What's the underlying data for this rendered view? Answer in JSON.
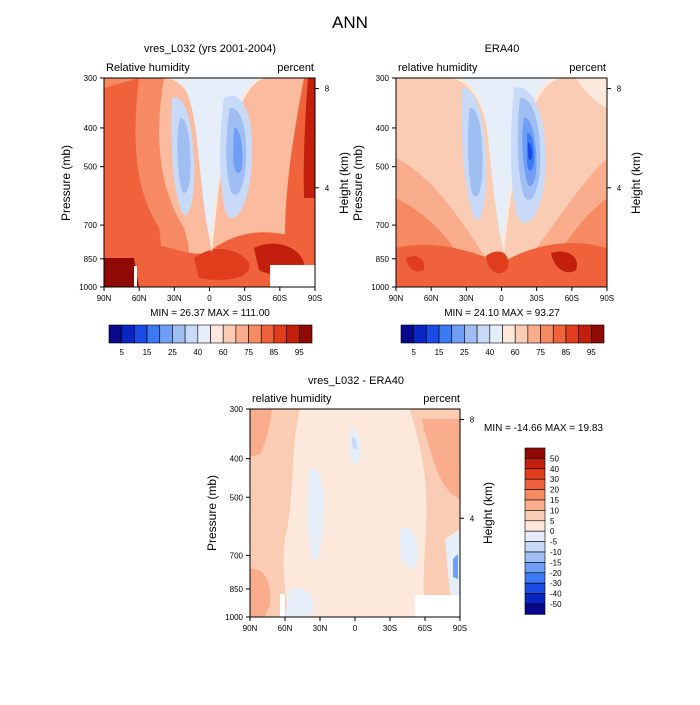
{
  "page_title": "ANN",
  "chart_data": [
    {
      "type": "contour",
      "title": "vres_L032 (yrs 2001-2004)",
      "left_label": "Relative humidity",
      "right_label": "percent",
      "ylabel": "Pressure (mb)",
      "ylabel_right": "Height (km)",
      "x_ticks": [
        "90N",
        "60N",
        "30N",
        "0",
        "30S",
        "60S",
        "90S"
      ],
      "x_values": [
        90,
        60,
        30,
        0,
        -30,
        -60,
        -90
      ],
      "y_ticks": [
        "300",
        "400",
        "500",
        "700",
        "850",
        "1000"
      ],
      "y_values": [
        300,
        400,
        500,
        700,
        850,
        1000
      ],
      "height_ticks": [
        "8",
        "4"
      ],
      "height_values": [
        8,
        4
      ],
      "stats": "MIN =  26.37  MAX = 111.00",
      "min": 26.37,
      "max": 111.0
    },
    {
      "type": "contour",
      "title": "ERA40",
      "left_label": "relative humidity",
      "right_label": "percent",
      "ylabel": "Pressure (mb)",
      "ylabel_right": "Height (km)",
      "x_ticks": [
        "90N",
        "60N",
        "30N",
        "0",
        "30S",
        "60S",
        "90S"
      ],
      "x_values": [
        90,
        60,
        30,
        0,
        -30,
        -60,
        -90
      ],
      "y_ticks": [
        "300",
        "400",
        "500",
        "700",
        "850",
        "1000"
      ],
      "y_values": [
        300,
        400,
        500,
        700,
        850,
        1000
      ],
      "height_ticks": [
        "8",
        "4"
      ],
      "height_values": [
        8,
        4
      ],
      "stats": "MIN =  24.10  MAX =  93.27",
      "min": 24.1,
      "max": 93.27
    },
    {
      "type": "contour",
      "title": "vres_L032 - ERA40",
      "left_label": "relative humidity",
      "right_label": "percent",
      "ylabel": "Pressure (mb)",
      "ylabel_right": "Height (km)",
      "x_ticks": [
        "90N",
        "60N",
        "30N",
        "0",
        "30S",
        "60S",
        "90S"
      ],
      "x_values": [
        90,
        60,
        30,
        0,
        -30,
        -60,
        -90
      ],
      "y_ticks": [
        "300",
        "400",
        "500",
        "700",
        "850",
        "1000"
      ],
      "y_values": [
        300,
        400,
        500,
        700,
        850,
        1000
      ],
      "height_ticks": [
        "8",
        "4"
      ],
      "height_values": [
        8,
        4
      ],
      "stats": "MIN = -14.66  MAX =  19.83",
      "min": -14.66,
      "max": 19.83
    }
  ],
  "colorbar_abs": {
    "labels": [
      "5",
      "15",
      "25",
      "40",
      "60",
      "75",
      "85",
      "95"
    ],
    "colors": [
      "#08088c",
      "#0a26c2",
      "#1a4be6",
      "#3d79f2",
      "#6f9ef4",
      "#9fbef2",
      "#c8daf7",
      "#e6eefa",
      "#fde8dc",
      "#fbccb4",
      "#f9ad8d",
      "#f68a63",
      "#f0623b",
      "#df3d1c",
      "#c21f0c",
      "#8f0a04"
    ]
  },
  "colorbar_diff": {
    "labels": [
      "50",
      "40",
      "30",
      "20",
      "15",
      "10",
      "5",
      "0",
      "-5",
      "-10",
      "-15",
      "-20",
      "-30",
      "-40",
      "-50"
    ],
    "colors": [
      "#8f0a04",
      "#c21f0c",
      "#df3d1c",
      "#f0623b",
      "#f68a63",
      "#f9ad8d",
      "#fbccb4",
      "#fde8dc",
      "#e6eefa",
      "#c8daf7",
      "#9fbef2",
      "#6f9ef4",
      "#3d79f2",
      "#1a4be6",
      "#0a26c2",
      "#08088c"
    ]
  }
}
